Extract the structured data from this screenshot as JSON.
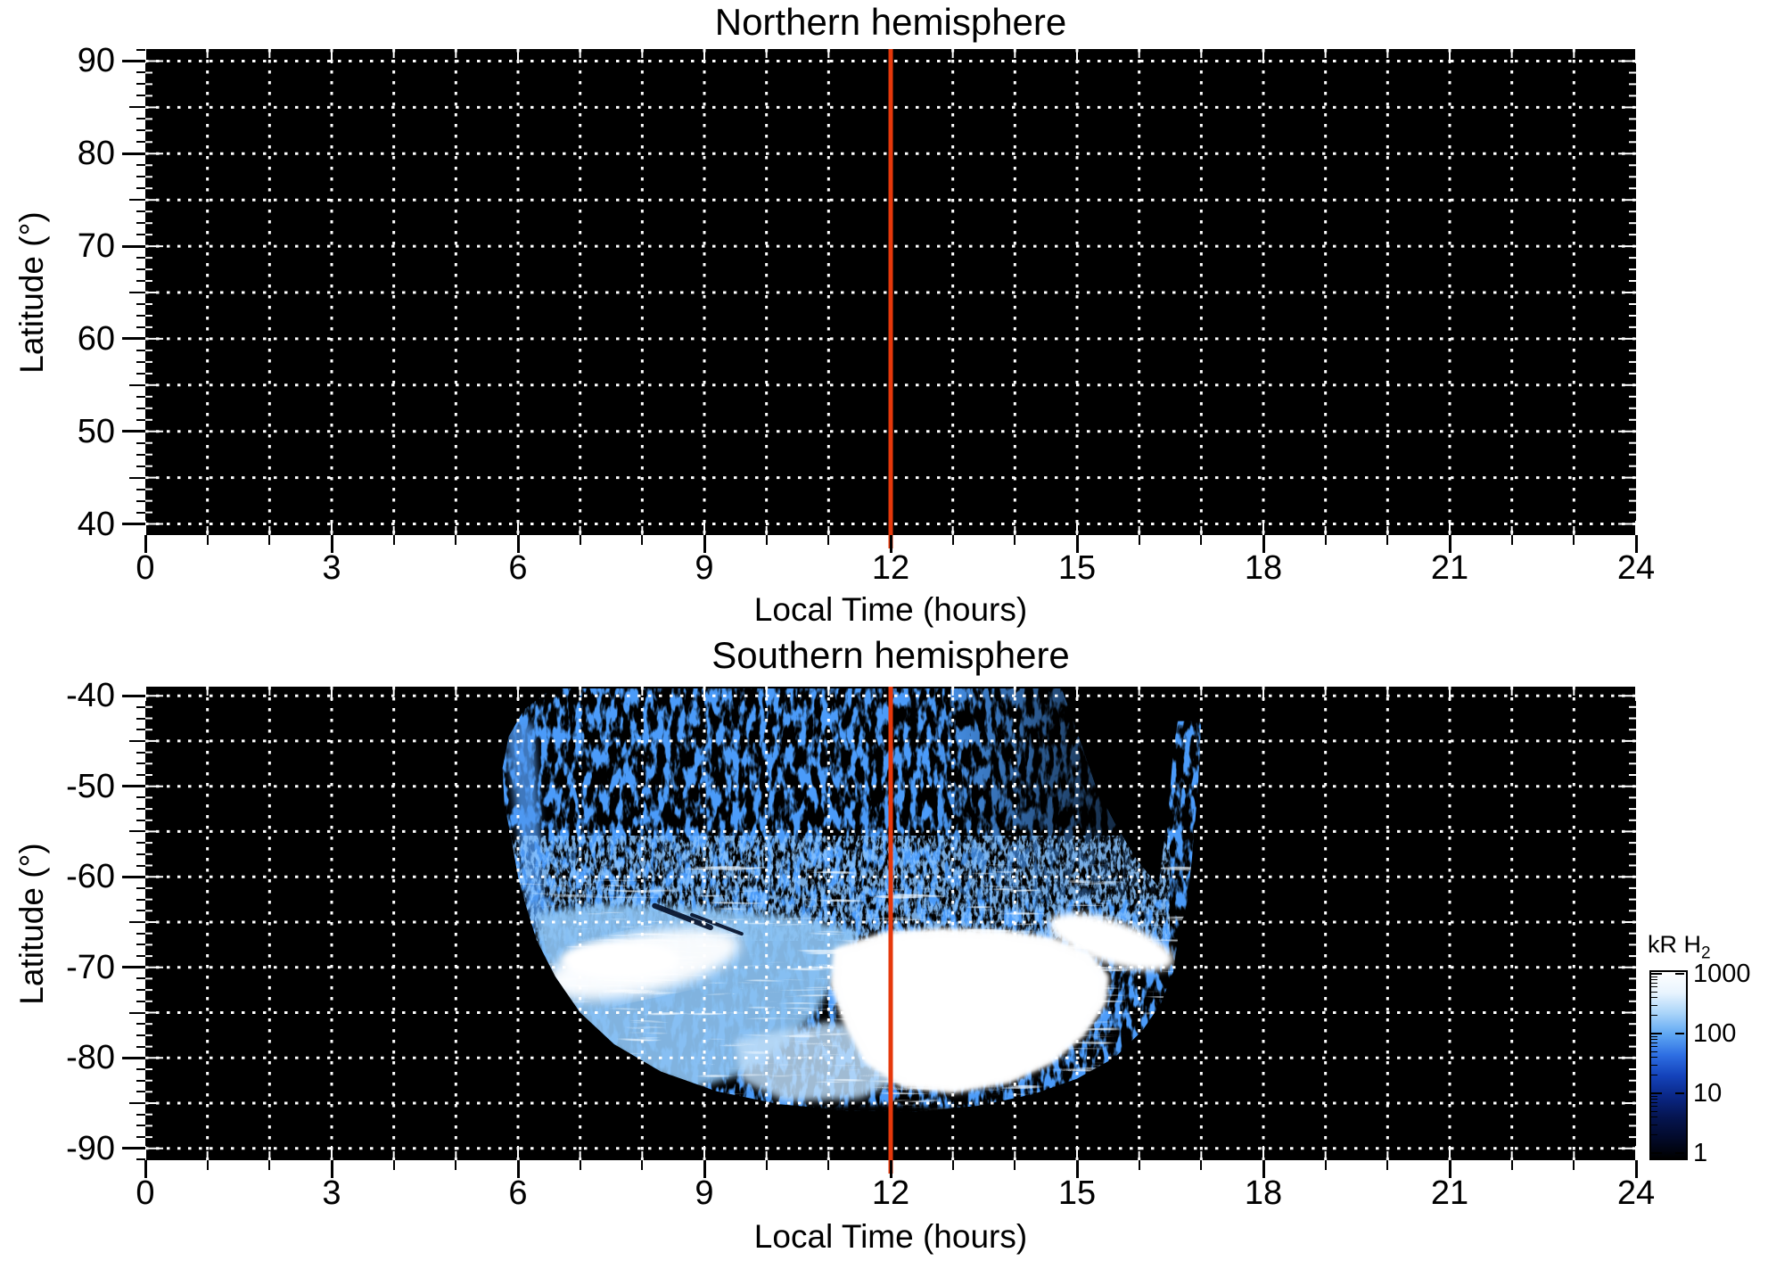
{
  "figure": {
    "background_color": "#ffffff",
    "panel_background": "#000000",
    "grid_color": "#ffffff",
    "noon_line_color": "#e6380b"
  },
  "chart_data": [
    {
      "type": "heatmap",
      "panel": "north",
      "title": "Northern hemisphere",
      "xlabel": "Local Time (hours)",
      "ylabel": "Latitude (°)",
      "xlim": [
        0,
        24
      ],
      "x_major_ticks": [
        0,
        3,
        6,
        9,
        12,
        15,
        18,
        21,
        24
      ],
      "x_minor_step_hours": 1,
      "ylim": [
        40,
        90
      ],
      "ylim_display": [
        91.3,
        38.8
      ],
      "y_major_ticks": [
        90,
        80,
        70,
        60,
        50,
        40
      ],
      "y_grid_step_deg": 5,
      "y_minor_step_deg": 1.25,
      "grid_style": "dotted",
      "noon_line_x": 12,
      "values": "no emission data — panel entirely black"
    },
    {
      "type": "heatmap",
      "panel": "south",
      "title": "Southern hemisphere",
      "xlabel": "Local Time (hours)",
      "ylabel": "Latitude (°)",
      "xlim": [
        0,
        24
      ],
      "x_major_ticks": [
        0,
        3,
        6,
        9,
        12,
        15,
        18,
        21,
        24
      ],
      "x_minor_step_hours": 1,
      "ylim": [
        -90,
        -40
      ],
      "ylim_display": [
        -39.0,
        -91.3
      ],
      "y_major_ticks": [
        -40,
        -50,
        -60,
        -70,
        -80,
        -90
      ],
      "y_grid_step_deg": 5,
      "y_minor_step_deg": 1.25,
      "grid_style": "dotted",
      "noon_line_x": 12,
      "colorbar": {
        "label_main": "kR H",
        "label_sub": "2",
        "scale": "log",
        "min": 1,
        "max": 1000,
        "ticks": [
          1000,
          100,
          10,
          1
        ],
        "gradient_top_to_bottom": [
          "#ffffff",
          "#e8f4fe",
          "#a9d4f9",
          "#5fa7f3",
          "#2e6fe3",
          "#1443bb",
          "#0a2786",
          "#051551",
          "#020a2b",
          "#000000"
        ]
      },
      "emission": {
        "units": "kR H2 (log color scale 1–1000)",
        "local_time_extent": [
          5.7,
          17.0
        ],
        "latitude_extent": [
          -40,
          -86
        ],
        "outline": [
          [
            6.55,
            -39.2
          ],
          [
            6.1,
            -41.5
          ],
          [
            5.85,
            -44.5
          ],
          [
            5.75,
            -48
          ],
          [
            5.78,
            -52
          ],
          [
            5.9,
            -56
          ],
          [
            6.0,
            -60
          ],
          [
            6.12,
            -63
          ],
          [
            6.3,
            -67
          ],
          [
            6.6,
            -71
          ],
          [
            7.0,
            -75
          ],
          [
            7.55,
            -78.5
          ],
          [
            8.3,
            -81.5
          ],
          [
            9.2,
            -83.7
          ],
          [
            10.2,
            -85.1
          ],
          [
            11.3,
            -85.8
          ],
          [
            12.4,
            -85.9
          ],
          [
            13.4,
            -85.3
          ],
          [
            14.3,
            -84.0
          ],
          [
            15.0,
            -82.3
          ],
          [
            15.6,
            -80.0
          ],
          [
            16.05,
            -77.0
          ],
          [
            16.35,
            -74.0
          ],
          [
            16.55,
            -70.5
          ],
          [
            16.62,
            -67.0
          ],
          [
            16.55,
            -64.0
          ],
          [
            16.3,
            -61.0
          ],
          [
            15.95,
            -58.0
          ],
          [
            15.6,
            -54.0
          ],
          [
            15.3,
            -50.0
          ],
          [
            15.1,
            -46.0
          ],
          [
            14.9,
            -42.0
          ],
          [
            14.75,
            -39.2
          ]
        ],
        "right_band": [
          [
            16.62,
            -42.8
          ],
          [
            17.0,
            -42.8
          ],
          [
            16.95,
            -50.0
          ],
          [
            16.85,
            -58.0
          ],
          [
            16.75,
            -64.0
          ],
          [
            16.55,
            -66.6
          ],
          [
            16.18,
            -66.9
          ],
          [
            16.33,
            -60.0
          ],
          [
            16.48,
            -52.0
          ],
          [
            16.55,
            -46.0
          ]
        ],
        "upper_speckle": {
          "lat_range": [
            -39.2,
            -63
          ],
          "description": "sparse mottled blue emission (few kR) on black"
        },
        "transition_band": {
          "lt_range": [
            6.2,
            16.0
          ],
          "lat_range": [
            -56,
            -66.5
          ]
        },
        "dim_right": {
          "lt_range": [
            12.6,
            16.45
          ],
          "lat_range": [
            -39.2,
            -62.5
          ]
        },
        "left_edge_band": [
          [
            5.78,
            -43.0
          ],
          [
            6.25,
            -43.0
          ],
          [
            6.45,
            -65.0
          ],
          [
            6.2,
            -66.0
          ]
        ],
        "light_region": [
          [
            6.3,
            -64.0
          ],
          [
            7.5,
            -63.0
          ],
          [
            9.0,
            -63.5
          ],
          [
            10.5,
            -64.5
          ],
          [
            11.5,
            -66.0
          ],
          [
            11.2,
            -70.0
          ],
          [
            10.8,
            -75.0
          ],
          [
            10.2,
            -79.0
          ],
          [
            9.5,
            -82.0
          ],
          [
            8.8,
            -83.5
          ],
          [
            8.0,
            -81.0
          ],
          [
            7.2,
            -77.5
          ],
          [
            6.7,
            -73.0
          ],
          [
            6.35,
            -68.0
          ]
        ],
        "light_wash": [
          [
            9.5,
            -78.0
          ],
          [
            11.0,
            -76.0
          ],
          [
            12.0,
            -77.0
          ],
          [
            12.3,
            -82.0
          ],
          [
            11.5,
            -84.5
          ],
          [
            10.3,
            -84.8
          ],
          [
            9.6,
            -82.5
          ]
        ],
        "white_blob_left": {
          "cx": 8.0,
          "cy": -69.6,
          "rx_hours": 1.6,
          "ry_deg": 3.3,
          "rotate_deg": -12,
          "core": {
            "cx": 7.65,
            "cy": -69.2,
            "rx_hours": 0.95,
            "ry_deg": 2.1
          }
        },
        "white_blob_central": [
          [
            11.1,
            -68.0
          ],
          [
            11.9,
            -66.2
          ],
          [
            12.8,
            -65.8
          ],
          [
            13.8,
            -66.0
          ],
          [
            14.6,
            -66.8
          ],
          [
            15.2,
            -68.5
          ],
          [
            15.5,
            -71.0
          ],
          [
            15.45,
            -74.0
          ],
          [
            15.1,
            -77.5
          ],
          [
            14.6,
            -80.5
          ],
          [
            13.9,
            -82.7
          ],
          [
            13.0,
            -83.8
          ],
          [
            12.2,
            -83.2
          ],
          [
            11.6,
            -80.5
          ],
          [
            11.25,
            -76.0
          ],
          [
            11.05,
            -72.0
          ]
        ],
        "white_arc_right": {
          "cx": 15.55,
          "cy": -67.2,
          "rx_hours": 1.05,
          "ry_deg": 2.4,
          "rotate_deg": 18
        },
        "dark_streaks": [
          [
            8.2,
            -63.2,
            9.1,
            -65.6
          ],
          [
            8.8,
            -64.2,
            9.6,
            -66.3
          ]
        ],
        "bottom_dome": {
          "cx": 11.8,
          "cy": -88.8,
          "rx_hours": 2.4,
          "ry_deg": 3.6
        }
      }
    }
  ]
}
